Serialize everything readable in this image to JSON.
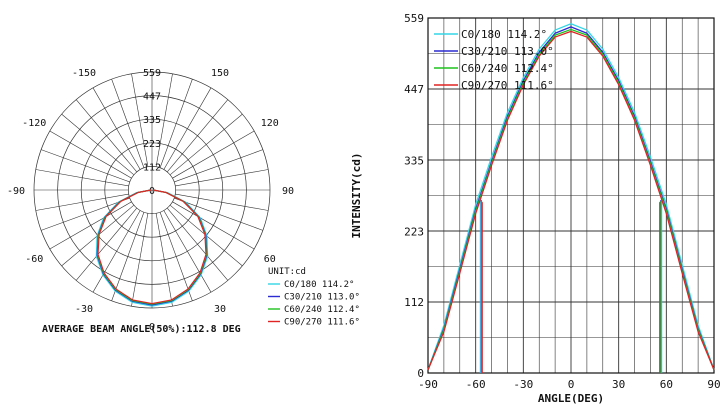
{
  "colors": {
    "c0": "#33d6e6",
    "c30": "#2b2bd1",
    "c60": "#1fc21f",
    "c90": "#e02424",
    "grid": "#333333"
  },
  "chart_data": [
    {
      "type": "polar",
      "title": "",
      "r_ticks": [
        "0",
        "112",
        "223",
        "335",
        "447",
        "559"
      ],
      "rmax": 559,
      "angle_labels": [
        {
          "deg": 0,
          "text": "0"
        },
        {
          "deg": 30,
          "text": "30"
        },
        {
          "deg": 60,
          "text": "60"
        },
        {
          "deg": 90,
          "text": "90"
        },
        {
          "deg": 120,
          "text": "120"
        },
        {
          "deg": 150,
          "text": "150"
        },
        {
          "deg": -30,
          "text": "-30"
        },
        {
          "deg": -60,
          "text": "-60"
        },
        {
          "deg": -90,
          "text": "-90"
        },
        {
          "deg": -120,
          "text": "-120"
        },
        {
          "deg": -150,
          "text": "-150"
        }
      ],
      "unit_label": "UNIT:cd",
      "legend": [
        {
          "key": "c0",
          "label": "C0/180 114.2°"
        },
        {
          "key": "c30",
          "label": "C30/210 113.0°"
        },
        {
          "key": "c60",
          "label": "C60/240 112.4°"
        },
        {
          "key": "c90",
          "label": "C90/270 111.6°"
        }
      ],
      "footer": "AVERAGE BEAM ANGLE(50%):112.8 DEG",
      "series": [
        {
          "key": "c0",
          "x": [
            -90,
            -80,
            -70,
            -60,
            -50,
            -40,
            -30,
            -20,
            -10,
            0,
            10,
            20,
            30,
            40,
            50,
            60,
            70,
            80,
            90
          ],
          "y": [
            5,
            75,
            170,
            265,
            340,
            410,
            465,
            510,
            540,
            550,
            540,
            510,
            465,
            410,
            340,
            265,
            170,
            75,
            5
          ]
        },
        {
          "key": "c30",
          "x": [
            -90,
            -80,
            -70,
            -60,
            -50,
            -40,
            -30,
            -20,
            -10,
            0,
            10,
            20,
            30,
            40,
            50,
            60,
            70,
            80,
            90
          ],
          "y": [
            5,
            70,
            163,
            258,
            333,
            404,
            460,
            505,
            535,
            545,
            535,
            505,
            460,
            404,
            333,
            258,
            163,
            70,
            5
          ]
        },
        {
          "key": "c60",
          "x": [
            -90,
            -80,
            -70,
            -60,
            -50,
            -40,
            -30,
            -20,
            -10,
            0,
            10,
            20,
            30,
            40,
            50,
            60,
            70,
            80,
            90
          ],
          "y": [
            5,
            68,
            160,
            255,
            330,
            401,
            457,
            502,
            532,
            541,
            532,
            502,
            457,
            401,
            330,
            255,
            160,
            68,
            5
          ]
        },
        {
          "key": "c90",
          "x": [
            -90,
            -80,
            -70,
            -60,
            -50,
            -40,
            -30,
            -20,
            -10,
            0,
            10,
            20,
            30,
            40,
            50,
            60,
            70,
            80,
            90
          ],
          "y": [
            5,
            65,
            157,
            251,
            327,
            398,
            454,
            499,
            529,
            538,
            529,
            499,
            454,
            398,
            327,
            251,
            157,
            65,
            5
          ]
        }
      ]
    },
    {
      "type": "line",
      "title": "",
      "xlabel": "ANGLE(DEG)",
      "ylabel": "INTENSITY(cd)",
      "xlim": [
        -90,
        90
      ],
      "ylim": [
        0,
        559
      ],
      "x_ticks": [
        "-90",
        "-60",
        "-30",
        "0",
        "30",
        "60",
        "90"
      ],
      "y_ticks": [
        "0",
        "112",
        "223",
        "335",
        "447",
        "559"
      ],
      "grid": true,
      "legend_position": "top-left",
      "legend": [
        {
          "key": "c0",
          "label": "C0/180 114.2°"
        },
        {
          "key": "c30",
          "label": "C30/210 113.0°"
        },
        {
          "key": "c60",
          "label": "C60/240 112.4°"
        },
        {
          "key": "c90",
          "label": "C90/270 111.6°"
        }
      ],
      "beam_angles": [
        {
          "key": "c0",
          "half": 57.1
        },
        {
          "key": "c30",
          "half": 56.5
        },
        {
          "key": "c60",
          "half": 56.2
        },
        {
          "key": "c90",
          "half": 55.8
        }
      ],
      "series": [
        {
          "key": "c0",
          "x": [
            -90,
            -80,
            -70,
            -60,
            -50,
            -40,
            -30,
            -20,
            -10,
            0,
            10,
            20,
            30,
            40,
            50,
            60,
            70,
            80,
            90
          ],
          "y": [
            5,
            75,
            170,
            265,
            340,
            410,
            465,
            510,
            540,
            550,
            540,
            510,
            465,
            410,
            340,
            265,
            170,
            75,
            5
          ]
        },
        {
          "key": "c30",
          "x": [
            -90,
            -80,
            -70,
            -60,
            -50,
            -40,
            -30,
            -20,
            -10,
            0,
            10,
            20,
            30,
            40,
            50,
            60,
            70,
            80,
            90
          ],
          "y": [
            5,
            70,
            163,
            258,
            333,
            404,
            460,
            505,
            535,
            545,
            535,
            505,
            460,
            404,
            333,
            258,
            163,
            70,
            5
          ]
        },
        {
          "key": "c60",
          "x": [
            -90,
            -80,
            -70,
            -60,
            -50,
            -40,
            -30,
            -20,
            -10,
            0,
            10,
            20,
            30,
            40,
            50,
            60,
            70,
            80,
            90
          ],
          "y": [
            5,
            68,
            160,
            255,
            330,
            401,
            457,
            502,
            532,
            541,
            532,
            502,
            457,
            401,
            330,
            255,
            160,
            68,
            5
          ]
        },
        {
          "key": "c90",
          "x": [
            -90,
            -80,
            -70,
            -60,
            -50,
            -40,
            -30,
            -20,
            -10,
            0,
            10,
            20,
            30,
            40,
            50,
            60,
            70,
            80,
            90
          ],
          "y": [
            5,
            65,
            157,
            251,
            327,
            398,
            454,
            499,
            529,
            538,
            529,
            499,
            454,
            398,
            327,
            251,
            157,
            65,
            5
          ]
        }
      ]
    }
  ]
}
